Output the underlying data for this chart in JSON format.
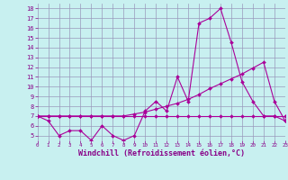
{
  "title": "",
  "xlabel": "Windchill (Refroidissement éolien,°C)",
  "bg_color": "#c8f0f0",
  "grid_color": "#9999bb",
  "line_color": "#aa0099",
  "x_values": [
    0,
    1,
    2,
    3,
    4,
    5,
    6,
    7,
    8,
    9,
    10,
    11,
    12,
    13,
    14,
    15,
    16,
    17,
    18,
    19,
    20,
    21,
    22,
    23
  ],
  "series1": [
    7.0,
    6.5,
    5.0,
    5.5,
    5.5,
    4.5,
    6.0,
    5.0,
    4.5,
    5.0,
    7.5,
    8.5,
    7.5,
    11.0,
    8.5,
    16.5,
    17.0,
    18.0,
    14.5,
    10.5,
    8.5,
    7.0,
    7.0,
    6.5
  ],
  "series2": [
    7.0,
    7.0,
    7.0,
    7.0,
    7.0,
    7.0,
    7.0,
    7.0,
    7.0,
    7.0,
    7.0,
    7.0,
    7.0,
    7.0,
    7.0,
    7.0,
    7.0,
    7.0,
    7.0,
    7.0,
    7.0,
    7.0,
    7.0,
    7.0
  ],
  "series3": [
    7.0,
    7.0,
    7.0,
    7.0,
    7.0,
    7.0,
    7.0,
    7.0,
    7.0,
    7.2,
    7.4,
    7.7,
    8.0,
    8.3,
    8.7,
    9.2,
    9.8,
    10.3,
    10.8,
    11.3,
    11.9,
    12.5,
    8.5,
    6.5
  ],
  "xlim": [
    0,
    23
  ],
  "ylim": [
    4.5,
    18.5
  ],
  "yticks": [
    5,
    6,
    7,
    8,
    9,
    10,
    11,
    12,
    13,
    14,
    15,
    16,
    17,
    18
  ],
  "xticks": [
    0,
    1,
    2,
    3,
    4,
    5,
    6,
    7,
    8,
    9,
    10,
    11,
    12,
    13,
    14,
    15,
    16,
    17,
    18,
    19,
    20,
    21,
    22,
    23
  ],
  "xlabel_fontsize": 6.0,
  "tick_fontsize": 5.5,
  "tick_color": "#880088",
  "xlabel_color": "#880088"
}
